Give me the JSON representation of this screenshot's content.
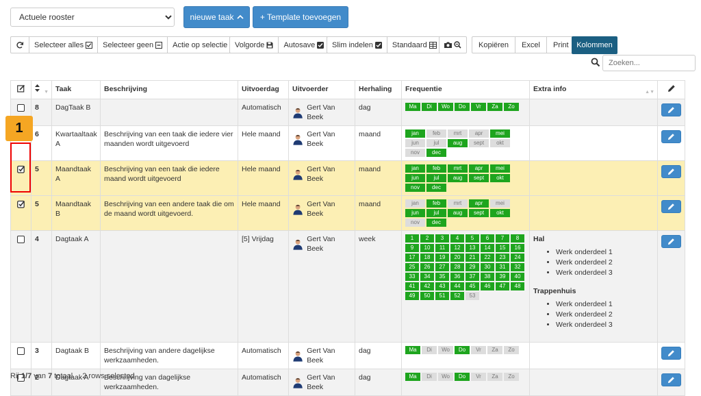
{
  "toolbar": {
    "rooster_select": "Actuele rooster",
    "nieuwe_taak": "nieuwe taak",
    "template_toevoegen": "+ Template toevoegen",
    "selecteer_alles": "Selecteer alles",
    "selecteer_geen": "Selecteer geen",
    "actie_op_selectie": "Actie op selectie",
    "volgorde": "Volgorde",
    "autosave": "Autosave",
    "slim_indelen": "Slim indelen",
    "standaard": "Standaard",
    "kopieren": "Kopiëren",
    "excel": "Excel",
    "print": "Print",
    "kolommen": "Kolommen"
  },
  "search": {
    "placeholder": "Zoeken..."
  },
  "annotation": {
    "badge": "1"
  },
  "columns": {
    "taak": "Taak",
    "beschrijving": "Beschrijving",
    "uitvoerdag": "Uitvoerdag",
    "uitvoerder": "Uitvoerder",
    "herhaling": "Herhaling",
    "frequentie": "Frequentie",
    "extra_info": "Extra info"
  },
  "day_labels": [
    "Ma",
    "Di",
    "Wo",
    "Do",
    "Vr",
    "Za",
    "Zo"
  ],
  "month_labels": [
    "jan",
    "feb",
    "mrt",
    "apr",
    "mei",
    "jun",
    "jul",
    "aug",
    "sept",
    "okt",
    "nov",
    "dec"
  ],
  "rows": [
    {
      "nr": "8",
      "taak": "DagTaak B",
      "beschrijving": "",
      "uitvoerdag": "Automatisch",
      "uitvoerder": "Gert Van Beek",
      "herhaling": "dag",
      "selected": false,
      "freq_type": "days",
      "active": [
        1,
        1,
        1,
        1,
        1,
        1,
        1
      ]
    },
    {
      "nr": "6",
      "taak": "Kwartaaltaak A",
      "beschrijving": "Beschrijving van een taak die iedere vier maanden wordt uitgevoerd",
      "uitvoerdag": "Hele maand",
      "uitvoerder": "Gert Van Beek",
      "herhaling": "maand",
      "selected": false,
      "freq_type": "months",
      "active": [
        1,
        0,
        0,
        0,
        1,
        0,
        0,
        1,
        0,
        0,
        0,
        1
      ]
    },
    {
      "nr": "5",
      "taak": "Maandtaak A",
      "beschrijving": "Beschrijving van een taak die iedere maand wordt uitgevoerd",
      "uitvoerdag": "Hele maand",
      "uitvoerder": "Gert Van Beek",
      "herhaling": "maand",
      "selected": true,
      "freq_type": "months",
      "active": [
        1,
        1,
        1,
        1,
        1,
        1,
        1,
        1,
        1,
        1,
        1,
        1
      ]
    },
    {
      "nr": "5",
      "taak": "Maandtaak B",
      "beschrijving": "Beschrijving van een andere taak die om de maand wordt uitgevoerd.",
      "uitvoerdag": "Hele maand",
      "uitvoerder": "Gert Van Beek",
      "herhaling": "maand",
      "selected": true,
      "freq_type": "months",
      "active": [
        0,
        1,
        0,
        1,
        0,
        1,
        1,
        1,
        1,
        1,
        0,
        1
      ]
    },
    {
      "nr": "4",
      "taak": "Dagtaak A",
      "beschrijving": "",
      "uitvoerdag": "[5] Vrijdag",
      "uitvoerder": "Gert Van Beek",
      "herhaling": "week",
      "selected": false,
      "freq_type": "weeks",
      "weeks_total": 53,
      "weeks_active": 52,
      "extra": [
        {
          "title": "Hal",
          "items": [
            "Werk onderdeel 1",
            "Werk onderdeel 2",
            "Werk onderdeel 3"
          ]
        },
        {
          "title": "Trappenhuis",
          "items": [
            "Werk onderdeel 1",
            "Werk onderdeel 2",
            "Werk onderdeel 3"
          ]
        }
      ]
    },
    {
      "nr": "3",
      "taak": "Dagtaak B",
      "beschrijving": "Beschrijving van andere dagelijkse werkzaamheden.",
      "uitvoerdag": "Automatisch",
      "uitvoerder": "Gert Van Beek",
      "herhaling": "dag",
      "selected": false,
      "freq_type": "days",
      "active": [
        1,
        0,
        0,
        1,
        0,
        0,
        0
      ]
    },
    {
      "nr": "2",
      "taak": "Dagtaak A",
      "beschrijving": "Beschrijving van dagelijkse werkzaamheden.",
      "uitvoerdag": "Automatisch",
      "uitvoerder": "Gert Van Beek",
      "herhaling": "dag",
      "selected": false,
      "freq_type": "days",
      "active": [
        1,
        0,
        0,
        1,
        0,
        0,
        0
      ]
    }
  ],
  "status": {
    "rij": "Rij",
    "pos": "1/7",
    "van": "van",
    "totaal_n": "7",
    "totaal": "totaal",
    "selected": "2 rows selected"
  },
  "colors": {
    "accent": "#428bca",
    "active": "#1ea51e",
    "selected_row": "#fcefb4",
    "kolommen": "#1b5f82"
  }
}
